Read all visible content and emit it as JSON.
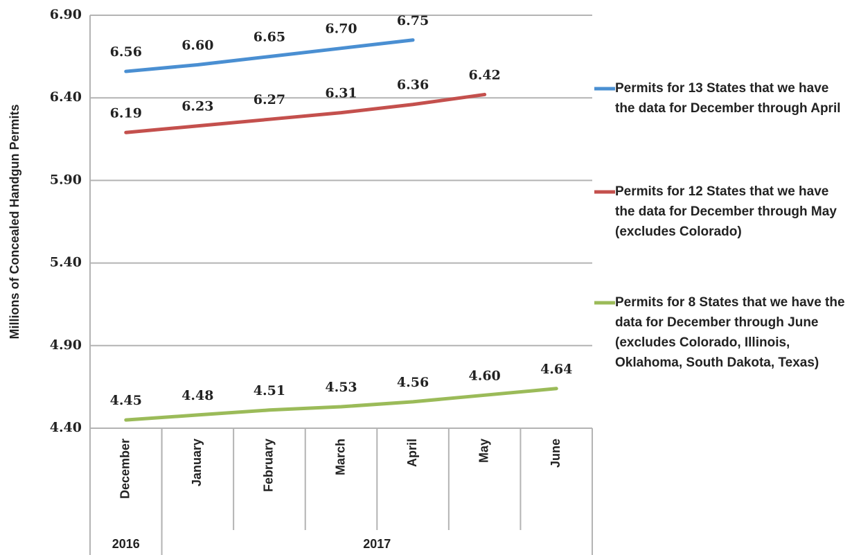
{
  "chart_data": {
    "type": "line",
    "y_axis_label": "Millions of Concealed Handgun Permits",
    "category_groups": [
      {
        "label": "2016",
        "categories": [
          "December"
        ]
      },
      {
        "label": "2017",
        "categories": [
          "January",
          "February",
          "March",
          "April",
          "May",
          "June"
        ]
      }
    ],
    "ylim": [
      4.4,
      6.9
    ],
    "yticks": [
      {
        "value": 4.4,
        "label": "4.40"
      },
      {
        "value": 4.9,
        "label": "4.90"
      },
      {
        "value": 5.4,
        "label": "5.40"
      },
      {
        "value": 5.9,
        "label": "5.90"
      },
      {
        "value": 6.4,
        "label": "6.40"
      },
      {
        "value": 6.9,
        "label": "6.90"
      }
    ],
    "grid": true,
    "legend": "right",
    "series": [
      {
        "name": "Permits for 13 States that we have the data for December through April",
        "color": "#4a8fd2",
        "values": [
          6.56,
          6.6,
          6.65,
          6.7,
          6.75,
          null,
          null
        ],
        "value_labels": [
          "6.56",
          "6.60",
          "6.65",
          "6.70",
          "6.75",
          null,
          null
        ]
      },
      {
        "name": "Permits for 12 States that we have the data for December through May (excludes Colorado)",
        "color": "#c4504d",
        "values": [
          6.19,
          6.23,
          6.27,
          6.31,
          6.36,
          6.42,
          null
        ],
        "value_labels": [
          "6.19",
          "6.23",
          "6.27",
          "6.31",
          "6.36",
          "6.42",
          null
        ]
      },
      {
        "name": "Permits for 8 States that we have the data for December through June (excludes Colorado, Illinois, Oklahoma, South Dakota, Texas)",
        "color": "#9bbb59",
        "values": [
          4.45,
          4.48,
          4.51,
          4.53,
          4.56,
          4.6,
          4.64
        ],
        "value_labels": [
          "4.45",
          "4.48",
          "4.51",
          "4.53",
          "4.56",
          "4.60",
          "4.64"
        ]
      }
    ]
  }
}
